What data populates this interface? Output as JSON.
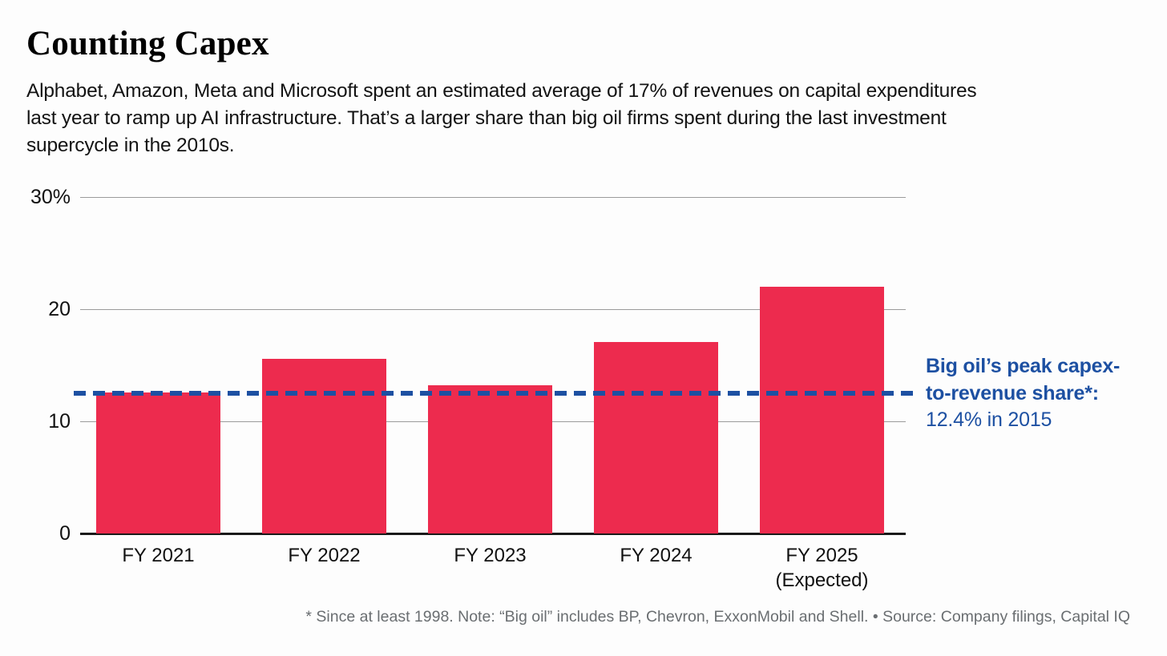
{
  "header": {
    "title": "Counting Capex",
    "subtitle_lines": [
      "Alphabet, Amazon, Meta and Microsoft spent an estimated average of 17% of revenues on capital expenditures",
      "last year to ramp up AI infrastructure. That’s a larger share than big oil firms spent during the last investment",
      "supercycle in the 2010s."
    ]
  },
  "chart_data": {
    "type": "bar",
    "title": "Counting Capex",
    "categories": [
      "FY 2021",
      "FY 2022",
      "FY 2023",
      "FY 2024",
      "FY 2025"
    ],
    "category_sublabels": [
      "",
      "",
      "",
      "",
      "(Expected)"
    ],
    "values": [
      12.6,
      15.6,
      13.2,
      17.1,
      22.0
    ],
    "ylim": [
      0,
      30
    ],
    "yticks": [
      {
        "value": 30,
        "label": "30%"
      },
      {
        "value": 20,
        "label": "20"
      },
      {
        "value": 10,
        "label": "10"
      },
      {
        "value": 0,
        "label": "0"
      }
    ],
    "grid": "horizontal",
    "legend": "none",
    "bar_color": "#ED2B4E",
    "reference_line": {
      "value": 12.4,
      "style": "dashed",
      "color": "#1D50A2",
      "label": "Big oil’s peak capex-to-revenue share*: 12.4% in 2015"
    }
  },
  "annotation": {
    "lines": [
      "Big oil’s peak capex-",
      "to-revenue share*:",
      "12.4% in 2015"
    ],
    "color": "#1D50A2"
  },
  "footnote": {
    "text": "* Since at least 1998. Note: “Big oil” includes BP, Chevron, ExxonMobil and Shell. •  Source: Company filings, Capital IQ"
  },
  "colors": {
    "bar": "#ED2B4E",
    "reference_blue": "#1D50A2",
    "gridline": "#9B9B9B",
    "axis": "#1A1A1A",
    "footnote_gray": "#6A6E71"
  }
}
